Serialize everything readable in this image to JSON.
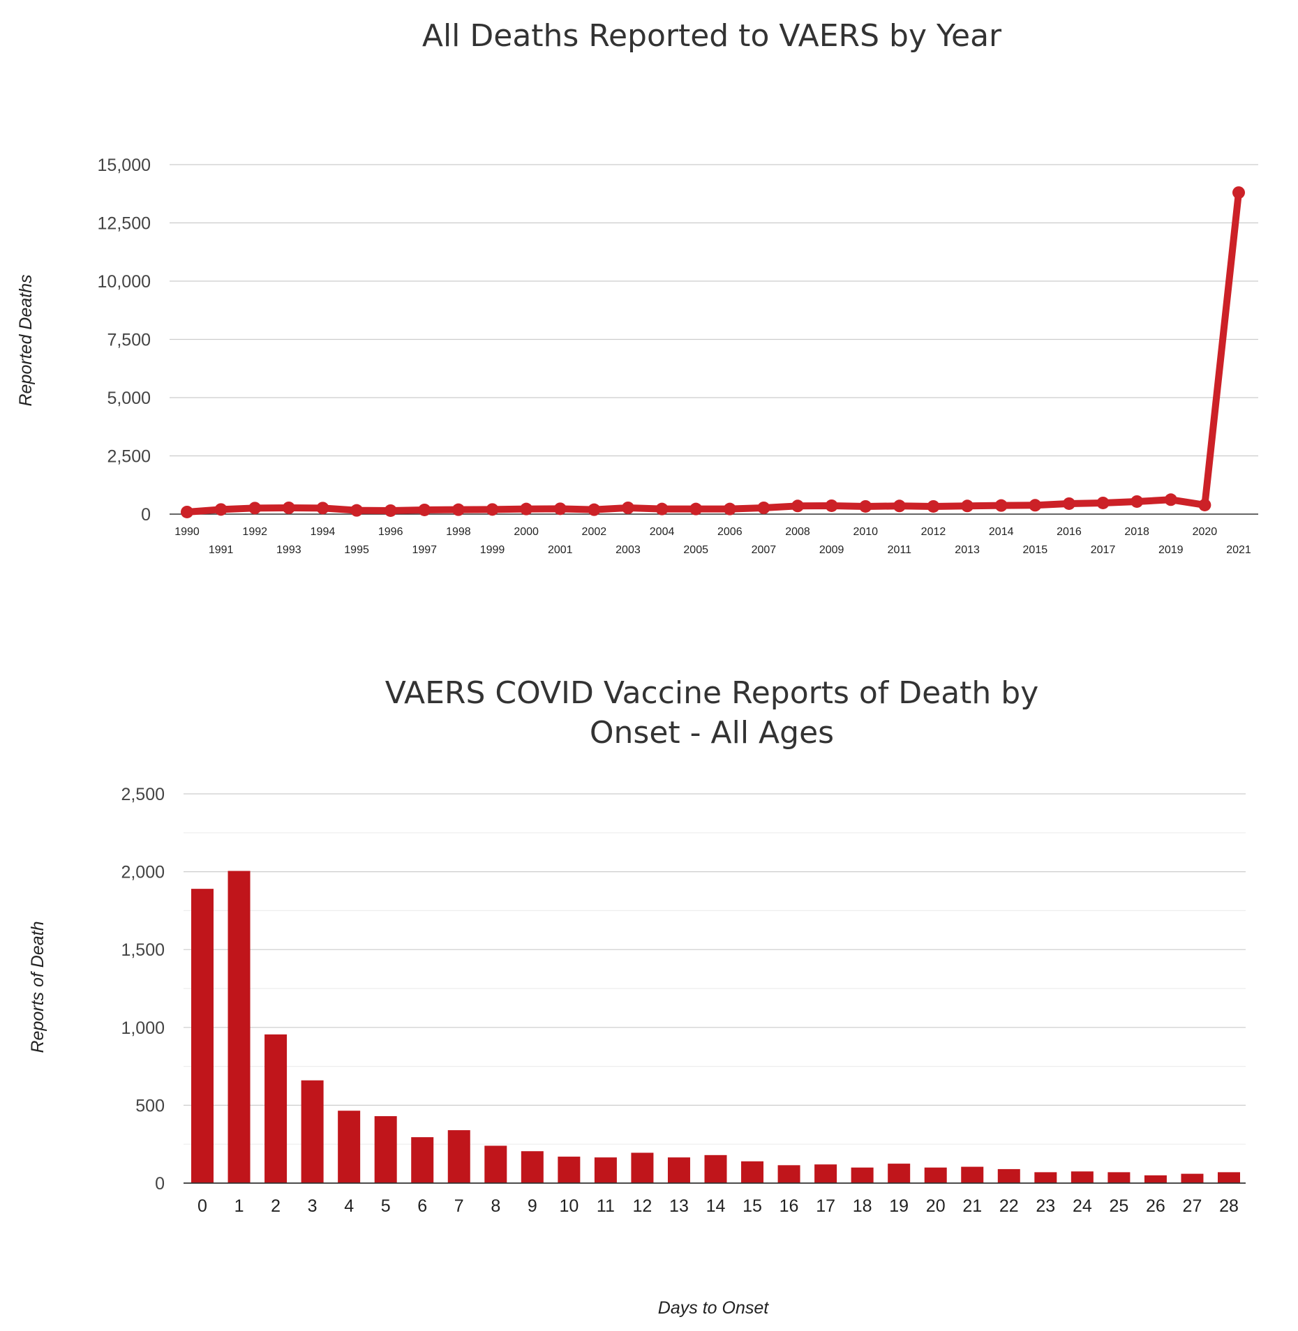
{
  "chart_data": [
    {
      "type": "line",
      "title": "All Deaths Reported to VAERS by Year",
      "xlabel": "",
      "ylabel": "Reported Deaths",
      "ylim": [
        0,
        15000
      ],
      "yticks": [
        "0",
        "2,500",
        "5,000",
        "7,500",
        "10,000",
        "12,500",
        "15,000"
      ],
      "grid": true,
      "color": "#cc2127",
      "x": [
        "1990",
        "1991",
        "1992",
        "1993",
        "1994",
        "1995",
        "1996",
        "1997",
        "1998",
        "1999",
        "2000",
        "2001",
        "2002",
        "2003",
        "2004",
        "2005",
        "2006",
        "2007",
        "2008",
        "2009",
        "2010",
        "2011",
        "2012",
        "2013",
        "2014",
        "2015",
        "2016",
        "2017",
        "2018",
        "2019",
        "2020",
        "2021"
      ],
      "values": [
        90,
        200,
        260,
        270,
        260,
        160,
        150,
        180,
        190,
        200,
        220,
        230,
        190,
        270,
        220,
        220,
        220,
        270,
        350,
        360,
        330,
        350,
        330,
        350,
        370,
        380,
        450,
        480,
        540,
        620,
        390,
        13800
      ]
    },
    {
      "type": "bar",
      "title_lines": [
        "VAERS COVID Vaccine Reports of Death by",
        "Onset - All Ages"
      ],
      "xlabel": "Days to Onset",
      "ylabel": "Reports of Death",
      "ylim": [
        0,
        2500
      ],
      "yticks": [
        "0",
        "500",
        "1,000",
        "1,500",
        "2,000",
        "2,500"
      ],
      "grid": true,
      "color": "#c0151b",
      "categories": [
        "0",
        "1",
        "2",
        "3",
        "4",
        "5",
        "6",
        "7",
        "8",
        "9",
        "10",
        "11",
        "12",
        "13",
        "14",
        "15",
        "16",
        "17",
        "18",
        "19",
        "20",
        "21",
        "22",
        "23",
        "24",
        "25",
        "26",
        "27",
        "28"
      ],
      "values": [
        1890,
        2005,
        955,
        660,
        465,
        430,
        295,
        340,
        240,
        205,
        170,
        165,
        195,
        165,
        180,
        140,
        115,
        120,
        100,
        125,
        100,
        105,
        90,
        70,
        75,
        70,
        50,
        60,
        70
      ]
    }
  ]
}
